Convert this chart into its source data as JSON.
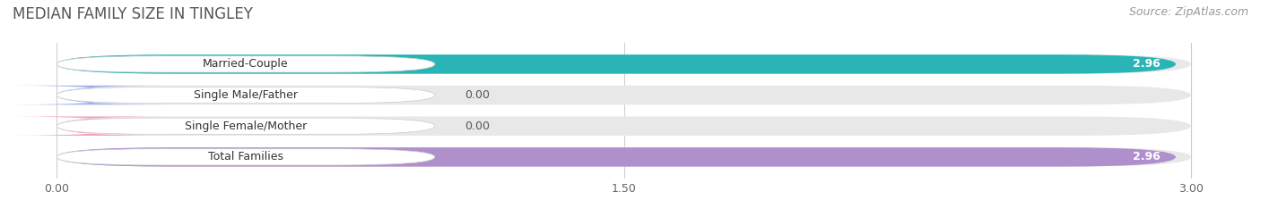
{
  "title": "MEDIAN FAMILY SIZE IN TINGLEY",
  "source": "Source: ZipAtlas.com",
  "categories": [
    "Married-Couple",
    "Single Male/Father",
    "Single Female/Mother",
    "Total Families"
  ],
  "values": [
    2.96,
    0.0,
    0.0,
    2.96
  ],
  "bar_colors": [
    "#29b5b5",
    "#a0aee8",
    "#f5a0b8",
    "#b090cc"
  ],
  "xlim": [
    0,
    3.0
  ],
  "xticks": [
    0.0,
    1.5,
    3.0
  ],
  "xtick_labels": [
    "0.00",
    "1.50",
    "3.00"
  ],
  "figsize": [
    14.06,
    2.33
  ],
  "dpi": 100,
  "bar_height": 0.62,
  "title_fontsize": 12,
  "source_fontsize": 9,
  "label_fontsize": 9,
  "value_fontsize": 9,
  "tick_fontsize": 9,
  "grid_color": "#d0d0d0",
  "background_color": "#ffffff",
  "bar_bg_color": "#e8e8e8"
}
